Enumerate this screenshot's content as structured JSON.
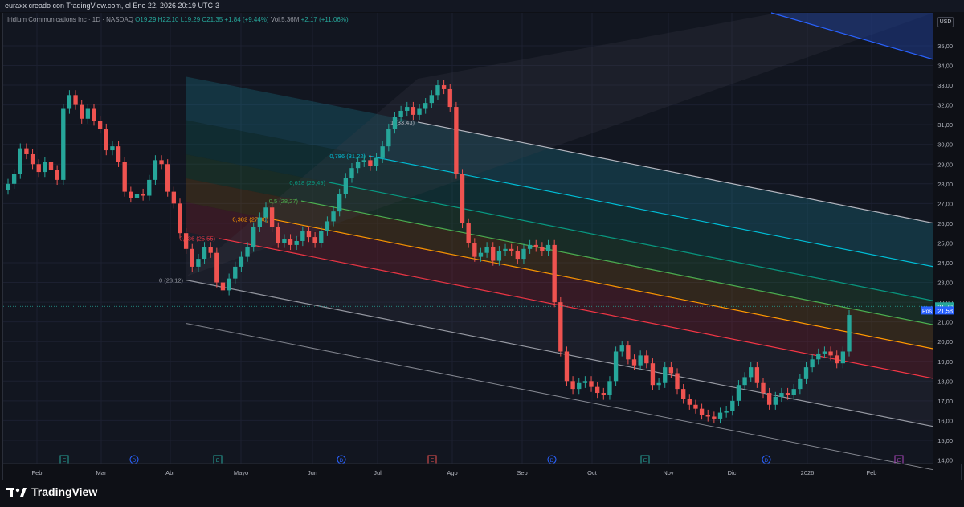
{
  "header": {
    "text": "euraxx creado con TradingView.com, el Ene 22, 2026 20:19 UTC-3"
  },
  "legend": {
    "symbol": "Iridium Communications Inc · 1D · NASDAQ",
    "open": "O19,29",
    "high": "H22,10",
    "low": "L19,29",
    "close": "C21,35",
    "change": "+1,84 (+9,44%)",
    "volume": "Vol.5,36M",
    "vol_change": "+2,17 (+11,06%)"
  },
  "brand": {
    "name": "TradingView",
    "icon": "tradingview-logo-icon"
  },
  "currency_button": "USD",
  "colors": {
    "up": "#26a69a",
    "down": "#ef5350",
    "background": "#0e1016",
    "grid": "#1c2030"
  },
  "chart_data": {
    "type": "candlestick",
    "y_axis": {
      "min": 14,
      "max": 35,
      "ticks": [
        "14,00",
        "15,00",
        "16,00",
        "17,00",
        "18,00",
        "19,00",
        "20,00",
        "21,00",
        "22,00",
        "23,00",
        "24,00",
        "25,00",
        "26,00",
        "27,00",
        "28,00",
        "29,00",
        "30,00",
        "31,00",
        "32,00",
        "33,00",
        "34,00",
        "35,00"
      ]
    },
    "x_axis": {
      "ticks": [
        "Feb",
        "Mar",
        "Abr",
        "Mayo",
        "Jun",
        "Jul",
        "Ago",
        "Sep",
        "Oct",
        "Nov",
        "Dic",
        "2026",
        "Feb"
      ]
    },
    "price_labels": [
      {
        "text": "21,79",
        "value": 21.79
      },
      {
        "text": "Pos",
        "value": 21.58
      },
      {
        "text": "21,58",
        "value": 21.58
      }
    ],
    "fib_channel": {
      "levels": [
        {
          "label": "0 (23,12)",
          "ratio": 0,
          "color": "#9598a1"
        },
        {
          "label": "0,236 (25,55)",
          "ratio": 0.236,
          "color": "#f23645"
        },
        {
          "label": "0,382 (27,06)",
          "ratio": 0.382,
          "color": "#ff9800"
        },
        {
          "label": "0,5 (28,27)",
          "ratio": 0.5,
          "color": "#4caf50"
        },
        {
          "label": "0,618 (29,49)",
          "ratio": 0.618,
          "color": "#089981"
        },
        {
          "label": "0,786 (31,22)",
          "ratio": 0.786,
          "color": "#00bcd4"
        },
        {
          "label": "1 (33,43)",
          "ratio": 1,
          "color": "#b2b5be"
        }
      ]
    },
    "events": [
      "E",
      "D",
      "E",
      "D",
      "E",
      "D",
      "E",
      "D",
      "E"
    ],
    "close_series": [
      28.0,
      28.5,
      29.8,
      29.5,
      29.0,
      28.6,
      29.1,
      28.7,
      28.2,
      31.8,
      32.5,
      32.0,
      31.3,
      31.8,
      31.2,
      30.8,
      29.7,
      29.9,
      29.1,
      27.6,
      27.3,
      27.5,
      27.4,
      28.2,
      29.2,
      29.0,
      27.6,
      27.0,
      25.5,
      24.7,
      23.8,
      24.2,
      24.8,
      24.5,
      23.0,
      22.6,
      23.2,
      23.8,
      24.3,
      24.8,
      25.8,
      26.3,
      26.8,
      25.8,
      25.0,
      25.2,
      24.9,
      25.1,
      25.6,
      25.3,
      25.0,
      25.6,
      26.1,
      26.6,
      27.5,
      28.3,
      28.8,
      29.1,
      29.2,
      28.9,
      29.3,
      29.9,
      30.8,
      31.4,
      31.7,
      31.9,
      31.5,
      31.8,
      32.1,
      32.5,
      33.0,
      32.8,
      31.9,
      28.5,
      26.0,
      25.0,
      24.3,
      24.5,
      24.8,
      24.1,
      24.6,
      24.7,
      24.6,
      24.2,
      24.7,
      24.9,
      24.8,
      24.6,
      24.9,
      22.0,
      19.5,
      18.0,
      17.6,
      17.9,
      18.0,
      17.7,
      17.4,
      17.3,
      18.0,
      19.5,
      19.8,
      19.1,
      18.8,
      19.3,
      18.9,
      17.8,
      17.9,
      18.7,
      18.4,
      17.6,
      17.1,
      16.8,
      16.6,
      16.3,
      16.2,
      16.1,
      16.4,
      16.5,
      17.0,
      17.8,
      18.2,
      18.7,
      17.9,
      17.4,
      16.8,
      17.2,
      17.4,
      17.3,
      17.6,
      18.1,
      18.7,
      19.1,
      19.4,
      19.5,
      19.3,
      18.9,
      19.5,
      21.35
    ]
  }
}
